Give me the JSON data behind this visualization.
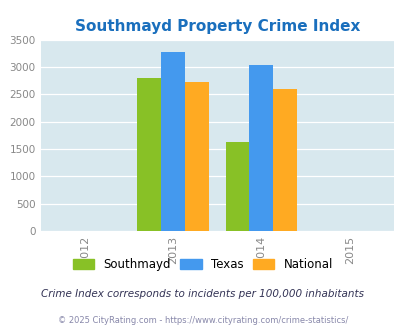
{
  "title": "Southmayd Property Crime Index",
  "years": [
    2013,
    2014
  ],
  "southmayd": [
    2800,
    1620
  ],
  "texas": [
    3270,
    3030
  ],
  "national": [
    2720,
    2590
  ],
  "colors": {
    "southmayd": "#88c126",
    "texas": "#4499ee",
    "national": "#ffaa22"
  },
  "xlim": [
    2011.5,
    2015.5
  ],
  "ylim": [
    0,
    3500
  ],
  "yticks": [
    0,
    500,
    1000,
    1500,
    2000,
    2500,
    3000,
    3500
  ],
  "xticks": [
    2012,
    2013,
    2014,
    2015
  ],
  "bar_width": 0.27,
  "background_color": "#d8e8ee",
  "title_color": "#1a6fbd",
  "title_fontsize": 11,
  "legend_labels": [
    "Southmayd",
    "Texas",
    "National"
  ],
  "footnote1": "Crime Index corresponds to incidents per 100,000 inhabitants",
  "footnote2": "© 2025 CityRating.com - https://www.cityrating.com/crime-statistics/",
  "footnote1_color": "#333355",
  "footnote2_color": "#8888aa"
}
